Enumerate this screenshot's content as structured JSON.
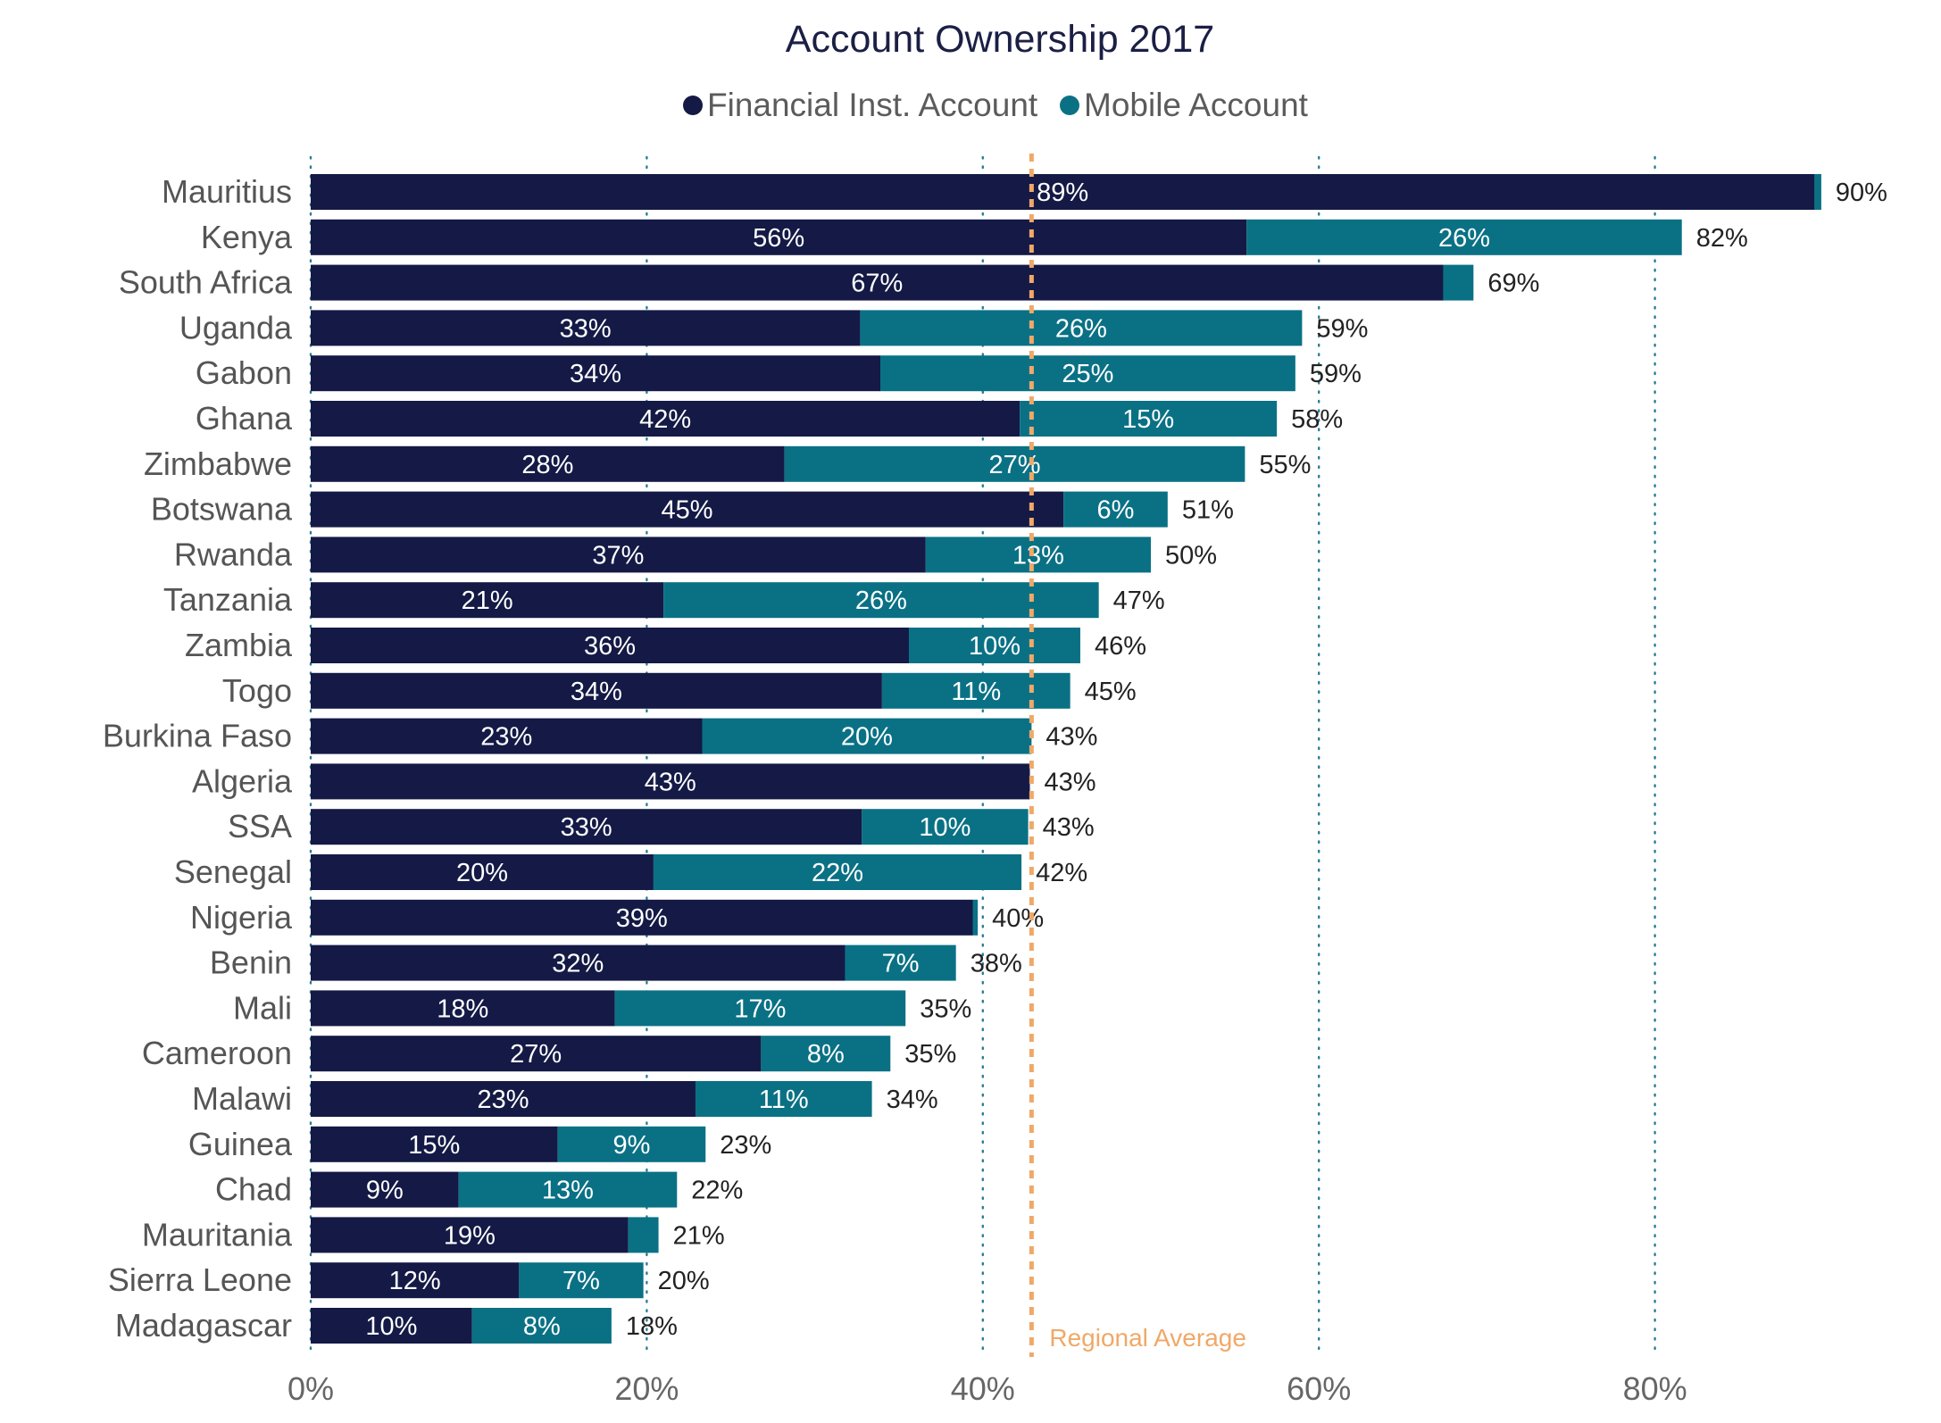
{
  "chart_data": {
    "type": "bar",
    "orientation": "horizontal",
    "stacked": true,
    "title": "Account Ownership 2017",
    "categories": [
      "Mauritius",
      "Kenya",
      "South Africa",
      "Uganda",
      "Gabon",
      "Ghana",
      "Zimbabwe",
      "Botswana",
      "Rwanda",
      "Tanzania",
      "Zambia",
      "Togo",
      "Burkina Faso",
      "Algeria",
      "SSA",
      "Senegal",
      "Nigeria",
      "Benin",
      "Mali",
      "Cameroon",
      "Malawi",
      "Guinea",
      "Chad",
      "Mauritania",
      "Sierra Leone",
      "Madagascar"
    ],
    "series": [
      {
        "name": "Financial Inst. Account",
        "color": "#141a45",
        "values": [
          89.5,
          55.7,
          67.4,
          32.7,
          33.9,
          42.2,
          28.2,
          44.8,
          36.6,
          21.0,
          35.6,
          34.0,
          23.3,
          42.8,
          32.8,
          20.4,
          39.4,
          31.8,
          18.1,
          26.8,
          22.9,
          14.7,
          8.8,
          18.9,
          12.4,
          9.6
        ],
        "labels": [
          "89%",
          "56%",
          "67%",
          "33%",
          "34%",
          "42%",
          "28%",
          "45%",
          "37%",
          "21%",
          "36%",
          "34%",
          "23%",
          "43%",
          "33%",
          "20%",
          "39%",
          "32%",
          "18%",
          "27%",
          "23%",
          "15%",
          "9%",
          "19%",
          "12%",
          "10%"
        ]
      },
      {
        "name": "Mobile Account",
        "color": "#0a7185",
        "values": [
          0.4,
          25.9,
          1.8,
          26.3,
          24.7,
          15.3,
          27.4,
          6.2,
          13.4,
          25.9,
          10.2,
          11.2,
          19.6,
          0.0,
          9.9,
          21.9,
          0.3,
          6.6,
          17.3,
          7.7,
          10.5,
          8.8,
          13.0,
          1.8,
          7.4,
          8.3
        ],
        "labels": [
          "",
          "26%",
          "",
          "26%",
          "25%",
          "15%",
          "27%",
          "6%",
          "13%",
          "26%",
          "10%",
          "11%",
          "20%",
          "",
          "10%",
          "22%",
          "",
          "7%",
          "17%",
          "8%",
          "11%",
          "9%",
          "13%",
          "",
          "7%",
          "8%"
        ]
      }
    ],
    "totals": [
      "90%",
      "82%",
      "69%",
      "59%",
      "59%",
      "58%",
      "55%",
      "51%",
      "50%",
      "47%",
      "46%",
      "45%",
      "43%",
      "43%",
      "43%",
      "42%",
      "40%",
      "38%",
      "35%",
      "35%",
      "34%",
      "23%",
      "22%",
      "21%",
      "20%",
      "18%"
    ],
    "xlim": [
      0,
      100
    ],
    "xticks": [
      0,
      20,
      40,
      60,
      80
    ],
    "xtick_labels": [
      "0%",
      "20%",
      "40%",
      "60%",
      "80%"
    ],
    "grid": "vertical dotted",
    "legend_position": "top-center",
    "reference_line": {
      "value": 42.9,
      "label": "Regional Average",
      "color": "#f0a868",
      "style": "dashed"
    }
  }
}
